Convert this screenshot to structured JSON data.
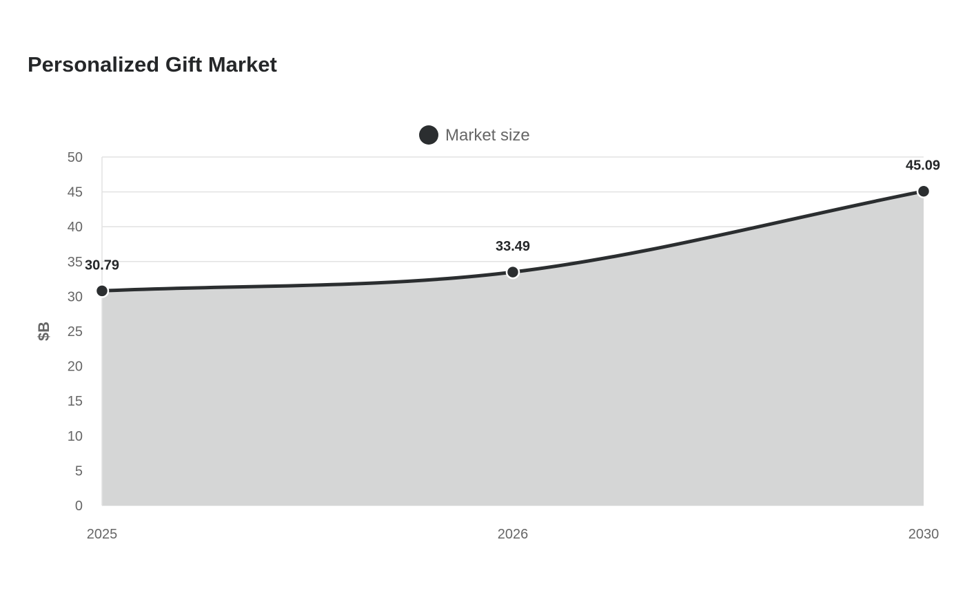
{
  "title": "Personalized Gift Market",
  "colors": {
    "series": "#2b2e30",
    "area": "#d5d6d6",
    "grid": "#e2e2e2",
    "text": "#666666",
    "title": "#252729"
  },
  "chart_data": {
    "type": "area",
    "title": "Personalized Gift Market",
    "xlabel": "",
    "ylabel": "$B",
    "categories": [
      "2025",
      "2026",
      "2030"
    ],
    "series": [
      {
        "name": "Market size",
        "values": [
          30.79,
          33.49,
          45.09
        ]
      }
    ],
    "data_labels": [
      "30.79",
      "33.49",
      "45.09"
    ],
    "ylim": [
      0,
      50
    ],
    "yticks": [
      "0",
      "5",
      "10",
      "15",
      "20",
      "25",
      "30",
      "35",
      "40",
      "45",
      "50"
    ],
    "grid": true,
    "legend": "top-center",
    "curve": "smooth"
  }
}
